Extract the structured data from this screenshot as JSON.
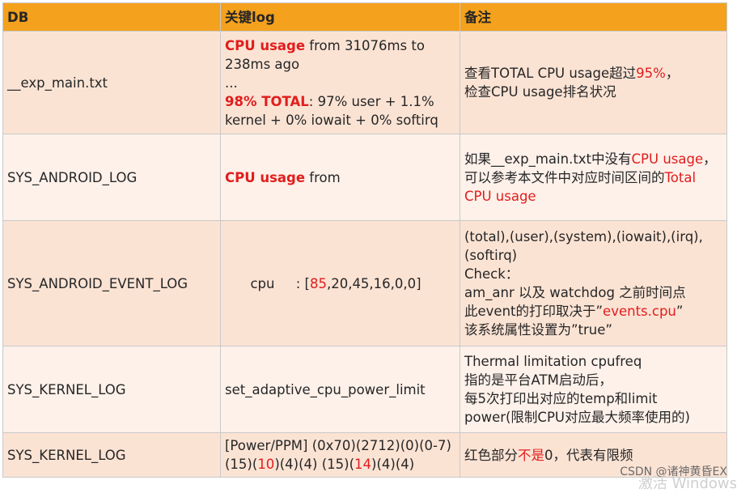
{
  "headers": {
    "db": "DB",
    "log": "关键log",
    "note": "备注"
  },
  "rows": [
    {
      "db": "__exp_main.txt",
      "log": {
        "l1_red": "CPU usage",
        "l1_rest": " from 31076ms to 238ms ago",
        "l2": "...",
        "l3_red": "98% TOTAL",
        "l3_rest": ": 97% user + 1.1% kernel + 0% iowait + 0% softirq"
      },
      "note": {
        "a": "查看TOTAL CPU usage超过",
        "a_red": "95%",
        "a_end": "，",
        "b": "检查CPU usage排名状况"
      }
    },
    {
      "db": "SYS_ANDROID_LOG",
      "log": {
        "red": "CPU usage",
        "rest": " from"
      },
      "note": {
        "a": "如果__exp_main.txt中没有",
        "a_red": "CPU usage",
        "a_end": "，",
        "b": "可以参考本文件中对应时间区间的",
        "b_red": "Total CPU usage"
      }
    },
    {
      "db": "SYS_ANDROID_EVENT_LOG",
      "log": {
        "pre": "cpu     : [",
        "red": "85",
        "post": ",20,45,16,0,0]"
      },
      "note": {
        "l1": "(total),(user),(system),(iowait),(irq),(softirq)",
        "l2": "Check：",
        "l3": "am_anr 以及 watchdog 之前时间点",
        "l4": "此event的打印取决于”",
        "l4_red": "events.cpu",
        "l4_end": "”",
        "l5": "该系统属性设置为”true”"
      }
    },
    {
      "db": "SYS_KERNEL_LOG",
      "log": {
        "text": "set_adaptive_cpu_power_limit"
      },
      "note": {
        "l1": "Thermal limitation cpufreq",
        "l2": "指的是平台ATM启动后，",
        "l3": "每5次打印出对应的temp和limit",
        "l4": "power(限制CPU对应最大频率使用的)"
      }
    },
    {
      "db": "SYS_KERNEL_LOG",
      "log": {
        "p1": "[Power/PPM] (0x70)(2712)(0)(0-7)(15)(",
        "r1": "10",
        "p2": ")(4)(4) (15)(",
        "r2": "14",
        "p3": ")(4)(4)"
      },
      "note": {
        "a": "红色部分",
        "a_red": "不是",
        "a_end": "0，代表有限频"
      }
    }
  ],
  "watermark": "CSDN @诸神黄昏EX",
  "watermark2": "激活 Windows"
}
